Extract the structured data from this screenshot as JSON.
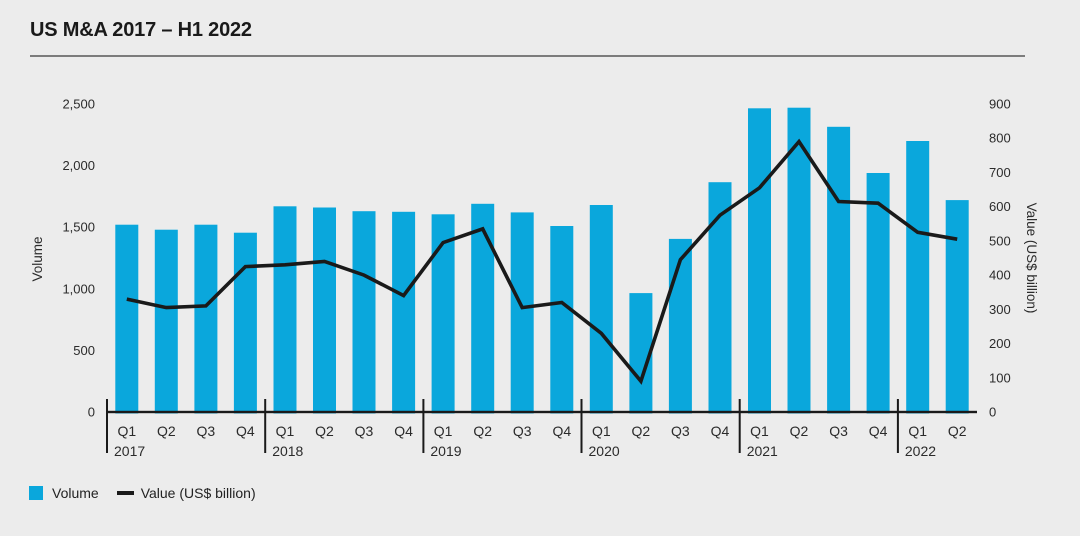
{
  "title": "US M&A 2017 – H1 2022",
  "legend": {
    "volume_label": "Volume",
    "value_label": "Value (US$ billion)"
  },
  "colors": {
    "background": "#ECECEC",
    "bar": "#0AA7DC",
    "line": "#1A1A1A",
    "axis": "#1A1A1A",
    "text": "#2B2B2B",
    "title_rule": "#7C7C7C"
  },
  "chart_data": {
    "type": "bar+line combo (bar = Volume on left axis, line = Value on right axis)",
    "title": "US M&A 2017 – H1 2022",
    "grid": false,
    "legend_position": "bottom-left",
    "groups": [
      {
        "year": "2017",
        "quarters": [
          "Q1",
          "Q2",
          "Q3",
          "Q4"
        ]
      },
      {
        "year": "2018",
        "quarters": [
          "Q1",
          "Q2",
          "Q3",
          "Q4"
        ]
      },
      {
        "year": "2019",
        "quarters": [
          "Q1",
          "Q2",
          "Q3",
          "Q4"
        ]
      },
      {
        "year": "2020",
        "quarters": [
          "Q1",
          "Q2",
          "Q3",
          "Q4"
        ]
      },
      {
        "year": "2021",
        "quarters": [
          "Q1",
          "Q2",
          "Q3",
          "Q4"
        ]
      },
      {
        "year": "2022",
        "quarters": [
          "Q1",
          "Q2"
        ]
      }
    ],
    "series": [
      {
        "name": "Volume",
        "type": "bar",
        "axis": "left",
        "color": "#0AA7DC",
        "values": [
          1520,
          1480,
          1520,
          1455,
          1670,
          1660,
          1630,
          1625,
          1605,
          1690,
          1620,
          1510,
          1680,
          965,
          1405,
          1865,
          2465,
          2470,
          2315,
          1940,
          2200,
          1720
        ]
      },
      {
        "name": "Value (US$ billion)",
        "type": "line",
        "axis": "right",
        "color": "#1A1A1A",
        "values": [
          330,
          305,
          310,
          425,
          430,
          440,
          400,
          340,
          495,
          535,
          305,
          320,
          230,
          90,
          445,
          575,
          655,
          790,
          615,
          610,
          525,
          505
        ]
      }
    ],
    "left_axis": {
      "label": "Volume",
      "min": 0,
      "max": 2500,
      "ticks": [
        0,
        500,
        1000,
        1500,
        2000,
        2500
      ],
      "tick_labels": [
        "0",
        "500",
        "1,000",
        "1,500",
        "2,000",
        "2,500"
      ]
    },
    "right_axis": {
      "label": "Value (US$ billion)",
      "min": 0,
      "max": 900,
      "ticks": [
        0,
        100,
        200,
        300,
        400,
        500,
        600,
        700,
        800,
        900
      ],
      "tick_labels": [
        "0",
        "100",
        "200",
        "300",
        "400",
        "500",
        "600",
        "700",
        "800",
        "900"
      ]
    }
  }
}
